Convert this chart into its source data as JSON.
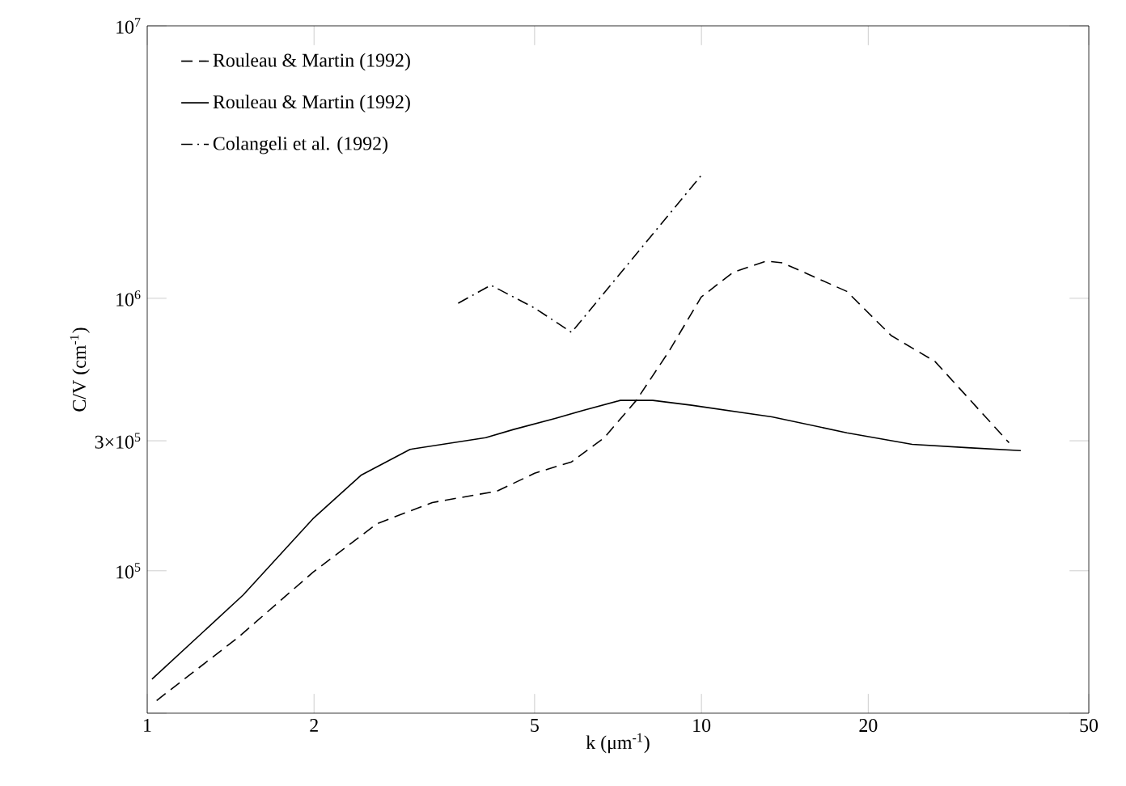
{
  "chart_data": {
    "type": "line",
    "log": "xy",
    "xlabel": "k (μm$^{-1}$)",
    "ylabel": "C/V (cm$^{-1}$)",
    "legend": "top left",
    "grid": false,
    "marker": "none",
    "xlim": [
      1,
      50
    ],
    "ylim": [
      30000,
      10000000
    ],
    "xticks": [
      1,
      2,
      5,
      10,
      20,
      50
    ],
    "yticks": [
      {
        "value": 30000,
        "label": null
      },
      {
        "value": 100000,
        "label": "10$^{5}$"
      },
      {
        "value": 300000,
        "label": "3×10$^{5}$"
      },
      {
        "value": 1000000,
        "label": "10$^{6}$"
      },
      {
        "value": 10000000,
        "label": "10$^{7}$"
      }
    ],
    "series": [
      {
        "name": "Rouleau & Martin (1992)",
        "color": "#000000",
        "line_style": "dashed",
        "x": [
          1.04,
          1.46,
          1.99,
          2.6,
          3.27,
          4.28,
          5.0,
          5.83,
          6.68,
          7.63,
          8.73,
          9.99,
          11.4,
          13.1,
          14.0,
          18.3,
          22.0,
          26.4,
          35.9
        ],
        "values": [
          33400,
          57000,
          98600,
          149000,
          178000,
          196000,
          228000,
          251000,
          308000,
          422000,
          637000,
          1010000,
          1245000,
          1370000,
          1350000,
          1060000,
          730000,
          586000,
          295000
        ]
      },
      {
        "name": "Rouleau & Martin (1992)",
        "color": "#000000",
        "line_style": "solid",
        "x": [
          1.02,
          1.49,
          1.99,
          2.43,
          2.98,
          4.08,
          4.58,
          5.46,
          6.12,
          7.14,
          8.17,
          9.6,
          13.4,
          18.3,
          24.0,
          30.2,
          37.7
        ],
        "values": [
          40000,
          81500,
          155000,
          224000,
          279000,
          308000,
          330000,
          363000,
          388000,
          422000,
          422000,
          405000,
          367000,
          321000,
          291000,
          283000,
          276000
        ]
      },
      {
        "name": "Colangeli et al. (1992)",
        "color": "#000000",
        "line_style": "dashdot",
        "x": [
          3.64,
          4.17,
          5.0,
          5.83,
          10.0
        ],
        "values": [
          959000,
          1117000,
          921000,
          750000,
          2830000
        ]
      }
    ]
  }
}
